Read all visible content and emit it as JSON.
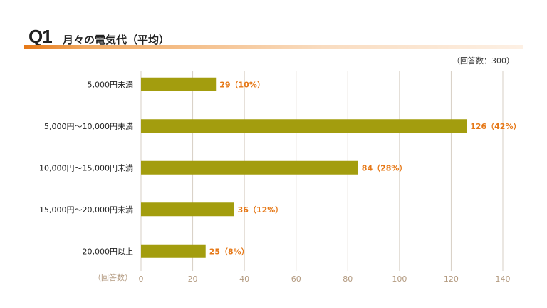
{
  "header": {
    "question_number": "Q1",
    "title": "月々の電気代（平均）"
  },
  "respondents_note": "（回答数：300）",
  "colors": {
    "bar": "#a39d0e",
    "accent": "#e67817",
    "grid": "#d7cfc4",
    "tick_text": "#b39a80"
  },
  "chart_data": {
    "type": "bar",
    "orientation": "horizontal",
    "title": "月々の電気代（平均）",
    "xlabel": "（回答数）",
    "categories": [
      "5,000円未満",
      "5,000円～10,000円未満",
      "10,000円～15,000円未満",
      "15,000円～20,000円未満",
      "20,000円以上"
    ],
    "values": [
      29,
      126,
      84,
      36,
      25
    ],
    "data_labels": [
      "29（10%）",
      "126（42%）",
      "84（28%）",
      "36（12%）",
      "25（8%）"
    ],
    "xlim": [
      0,
      140
    ],
    "xticks": [
      0,
      20,
      40,
      60,
      80,
      100,
      120,
      140
    ],
    "grid": true
  }
}
